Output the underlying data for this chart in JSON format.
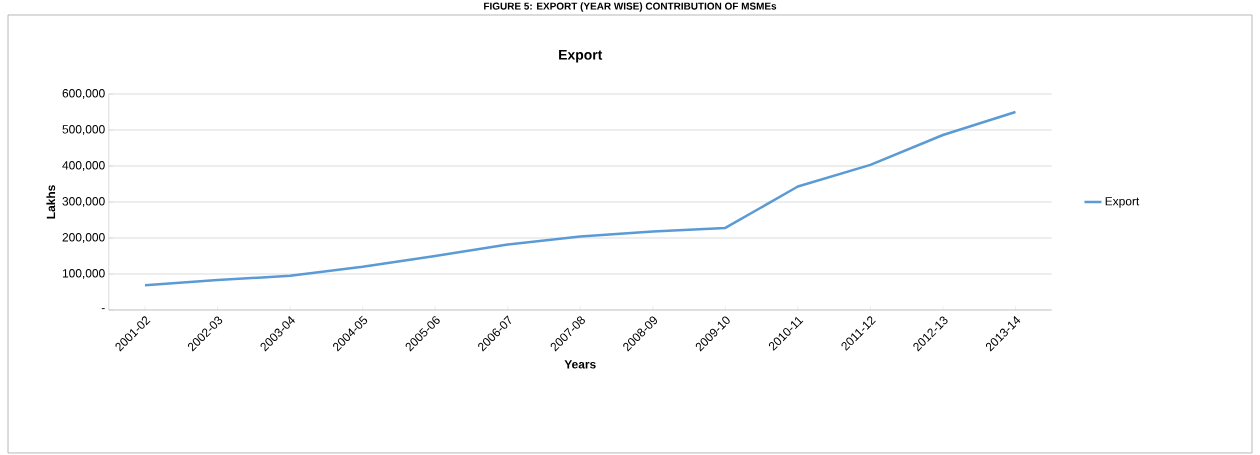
{
  "chart_data": {
    "type": "line",
    "title": "Export",
    "subtitle": "FIGURE 5: EXPORT (YEAR WISE) CONTRIBUTION OF MSMEs",
    "xlabel": "Years",
    "ylabel": "Lakhs",
    "categories": [
      "2001-02",
      "2002-03",
      "2003-04",
      "2004-05",
      "2005-06",
      "2006-07",
      "2007-08",
      "2008-09",
      "2009-10",
      "2010-11",
      "2011-12",
      "2012-13",
      "2013-14"
    ],
    "series": [
      {
        "name": "Export",
        "color": "#5b9bd5",
        "values": [
          69000,
          83000,
          95000,
          120000,
          150000,
          182000,
          204000,
          218000,
          228000,
          343000,
          403000,
          486000,
          550000
        ]
      }
    ],
    "ylim": [
      0,
      600000
    ],
    "yticks": [
      {
        "value": 0,
        "label": "-"
      },
      {
        "value": 100000,
        "label": "100,000"
      },
      {
        "value": 200000,
        "label": "200,000"
      },
      {
        "value": 300000,
        "label": "300,000"
      },
      {
        "value": 400000,
        "label": "400,000"
      },
      {
        "value": 500000,
        "label": "500,000"
      },
      {
        "value": 600000,
        "label": "600,000"
      }
    ],
    "grid": "y",
    "legend": "right",
    "marker": "none",
    "line_style": "solid"
  }
}
